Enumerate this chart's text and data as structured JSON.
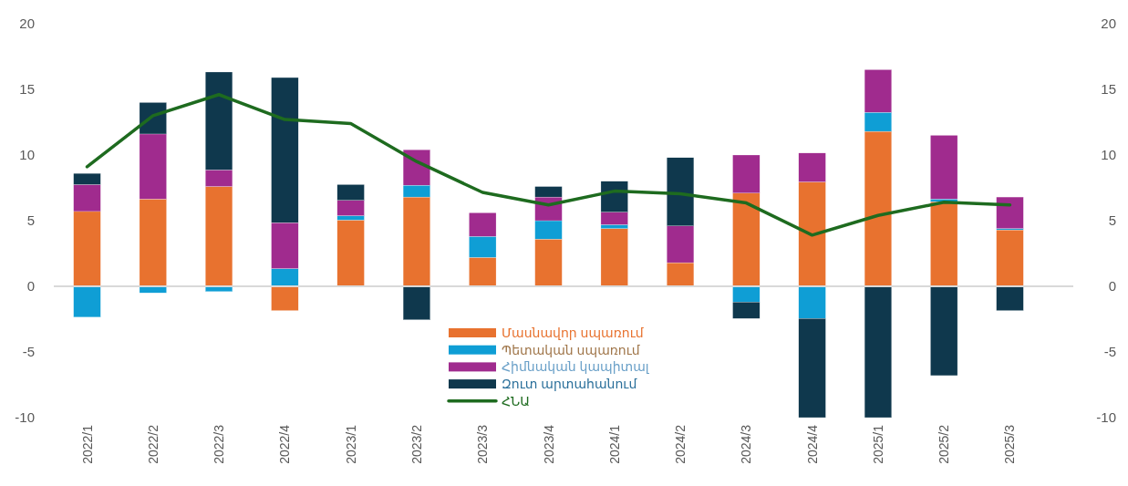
{
  "chart_data": {
    "type": "bar",
    "stacked": true,
    "categories": [
      "2022/1",
      "2022/2",
      "2022/3",
      "2022/4",
      "2023/1",
      "2023/2",
      "2023/3",
      "2023/4",
      "2024/1",
      "2024/2",
      "2024/3",
      "2024/4",
      "2025/1",
      "2025/2",
      "2025/3"
    ],
    "series": [
      {
        "name": "Մասնավոր սպառում",
        "color": "#e8722f",
        "values": [
          5.7,
          6.65,
          7.6,
          -1.85,
          5.05,
          6.8,
          2.2,
          3.6,
          4.4,
          1.8,
          7.1,
          7.95,
          11.8,
          6.45,
          4.3
        ]
      },
      {
        "name": "Պետական սպառում",
        "color": "#0f9ed5",
        "values": [
          -2.35,
          -0.5,
          -0.4,
          1.35,
          0.33,
          0.9,
          1.6,
          1.4,
          0.3,
          0,
          -1.2,
          -2.45,
          1.45,
          0.2,
          0.1
        ]
      },
      {
        "name": "Հիմնական կապիտալ",
        "color": "#a02b8e",
        "values": [
          2.05,
          4.95,
          1.27,
          3.5,
          1.17,
          2.7,
          1.8,
          1.8,
          0.95,
          2.8,
          2.9,
          2.2,
          3.25,
          4.85,
          2.4
        ]
      },
      {
        "name": "Զուտ արտահանում",
        "color": "#0f384d",
        "values": [
          0.85,
          2.4,
          7.45,
          11.05,
          1.2,
          -2.55,
          0,
          0.8,
          2.35,
          5.2,
          -1.25,
          -7.55,
          -10,
          -6.8,
          -1.85
        ]
      },
      {
        "name": "ՀՆԱ",
        "type": "line",
        "color": "#1e6b1f",
        "values": [
          9.1,
          13.0,
          14.6,
          12.7,
          12.4,
          9.5,
          7.15,
          6.2,
          7.25,
          7.05,
          6.35,
          3.9,
          5.4,
          6.4,
          6.2
        ]
      }
    ],
    "ylim": [
      -10,
      20
    ],
    "yticks": [
      -10,
      -5,
      0,
      5,
      10,
      15,
      20
    ],
    "y2lim": [
      -10,
      20
    ],
    "y2ticks": [
      -10,
      -5,
      0,
      5,
      10,
      15,
      20
    ],
    "legend": "bottom"
  }
}
